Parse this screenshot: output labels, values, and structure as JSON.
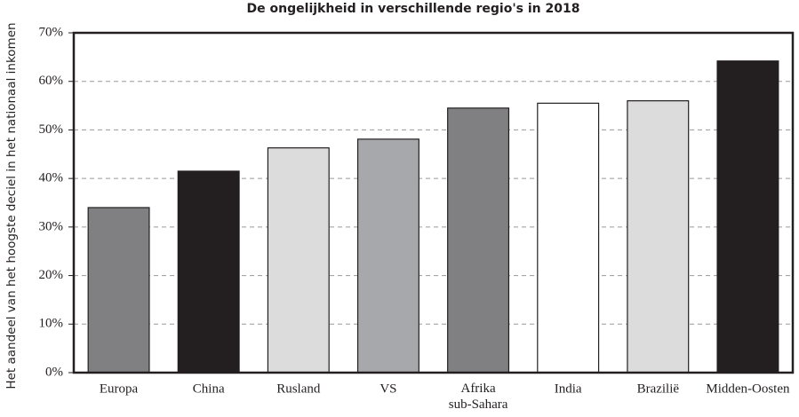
{
  "chart_data": {
    "type": "bar",
    "title": "De ongelijkheid in verschillende regio's in 2018",
    "y_label": "Het aandeel van het hoogste deciel in het nationaal inkomen",
    "categories": [
      "Europa",
      "China",
      "Rusland",
      "VS",
      "Afrika\nsub-Sahara",
      "India",
      "Brazilië",
      "Midden-Oosten"
    ],
    "values": [
      34,
      41.5,
      46.3,
      48.1,
      54.5,
      55.5,
      56,
      64.2
    ],
    "colors": [
      "#808083",
      "#231f20",
      "#dcdcdd",
      "#a7a8ab",
      "#808083",
      "#ffffff",
      "#dcdcdd",
      "#231f20"
    ],
    "ylim": [
      0,
      70
    ],
    "yticks": [
      {
        "value": 0,
        "label": "0%"
      },
      {
        "value": 10,
        "label": "10%"
      },
      {
        "value": 20,
        "label": "20%"
      },
      {
        "value": 30,
        "label": "30%"
      },
      {
        "value": 40,
        "label": "40%"
      },
      {
        "value": 50,
        "label": "50%"
      },
      {
        "value": 60,
        "label": "60%"
      },
      {
        "value": 70,
        "label": "70%"
      }
    ],
    "grid": true
  }
}
